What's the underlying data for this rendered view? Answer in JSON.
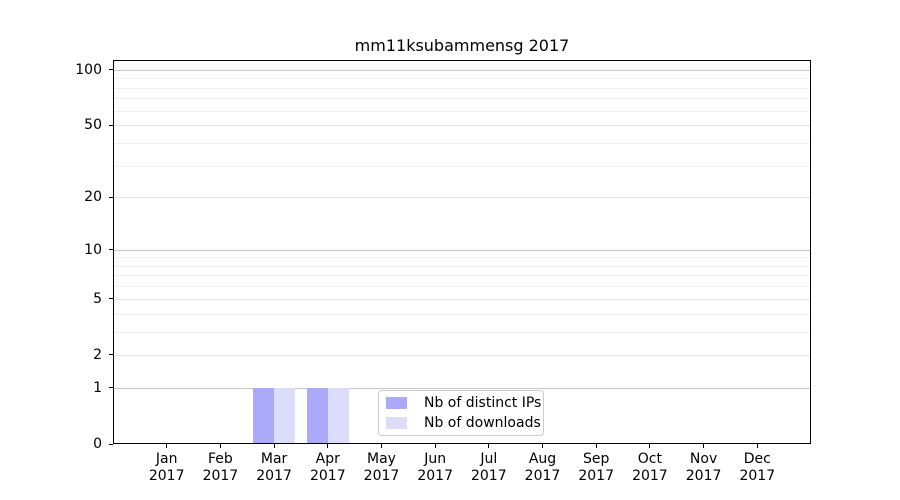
{
  "figure": {
    "title": "mm11ksubammensg 2017"
  },
  "chart_data": {
    "type": "bar",
    "title": "mm11ksubammensg 2017",
    "categories": [
      "Jan",
      "Feb",
      "Mar",
      "Apr",
      "May",
      "Jun",
      "Jul",
      "Aug",
      "Sep",
      "Oct",
      "Nov",
      "Dec"
    ],
    "category_year": "2017",
    "series": [
      {
        "key": "distinct-ips",
        "name": "Nb of distinct IPs",
        "color": "#aaaaf8",
        "values": [
          0,
          0,
          1,
          1,
          0,
          0,
          0,
          0,
          0,
          0,
          0,
          0
        ]
      },
      {
        "key": "downloads",
        "name": "Nb of downloads",
        "color": "#dcdcfb",
        "values": [
          0,
          0,
          1,
          1,
          0,
          0,
          0,
          0,
          0,
          0,
          0,
          0
        ]
      }
    ],
    "yscale": "log1p",
    "ylim": [
      0,
      112
    ],
    "y_major_ticks": [
      0,
      1,
      2,
      5,
      10,
      20,
      50,
      100
    ],
    "y_strong_grid_values": [
      1,
      10,
      100
    ],
    "y_minor_gridlines": [
      3,
      4,
      6,
      7,
      8,
      9,
      30,
      40,
      60,
      70,
      80,
      90
    ],
    "grid": "horizontal",
    "legend_position": "lower-center",
    "xlabel": "",
    "ylabel": ""
  },
  "colors": {
    "background": "#ffffff",
    "axis": "#000000",
    "grid_strong": "#c8c8c8",
    "grid_medium": "#e2e2e2",
    "grid_minor": "#efefef",
    "legend_border": "#cccccc"
  }
}
